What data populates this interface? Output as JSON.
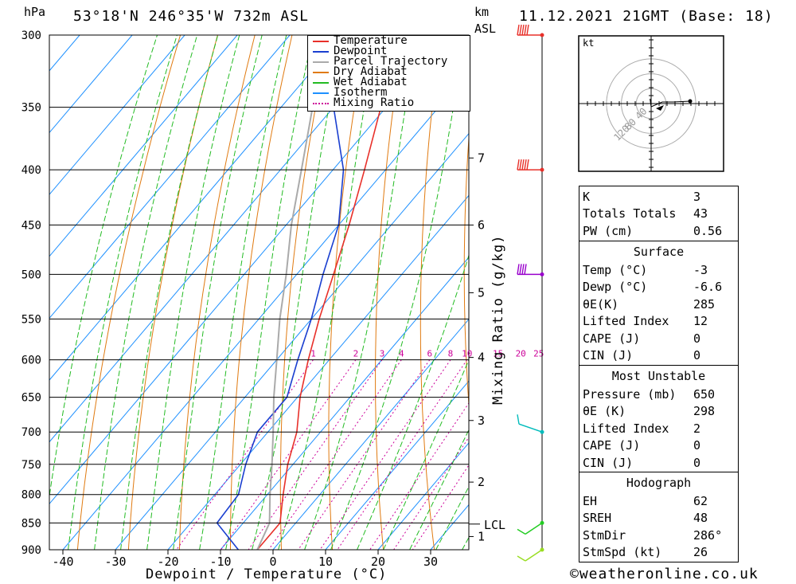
{
  "header": {
    "hpa_label": "hPa",
    "location": "53°18'N  246°35'W  732m  ASL",
    "km_label": "km",
    "asl_label": "ASL",
    "datetime": "11.12.2021  21GMT  (Base: 18)"
  },
  "legend": [
    {
      "name": "Temperature",
      "color": "#e8302a"
    },
    {
      "name": "Dewpoint",
      "color": "#1a3fd0"
    },
    {
      "name": "Parcel Trajectory",
      "color": "#aaaaaa"
    },
    {
      "name": "Dry Adiabat",
      "color": "#e07a10"
    },
    {
      "name": "Wet Adiabat",
      "color": "#22bb22"
    },
    {
      "name": "Isotherm",
      "color": "#1e90ff"
    },
    {
      "name": "Mixing Ratio",
      "color": "#cc0099"
    }
  ],
  "chart_data": {
    "type": "line",
    "title": "Skew-T log-P diagram",
    "xlabel": "Dewpoint / Temperature (°C)",
    "ylabel": "hPa",
    "y_right_label": "Mixing Ratio (g/kg)",
    "xlim": [
      -45,
      37
    ],
    "ylim": [
      900,
      300
    ],
    "pressure_levels": [
      300,
      350,
      400,
      450,
      500,
      550,
      600,
      650,
      700,
      750,
      800,
      850,
      900
    ],
    "x_ticks": [
      -40,
      -30,
      -20,
      -10,
      0,
      10,
      20,
      30
    ],
    "km_ticks": [
      {
        "label": "1",
        "p": 875
      },
      {
        "label": "2",
        "p": 779
      },
      {
        "label": "3",
        "p": 683
      },
      {
        "label": "4",
        "p": 597
      },
      {
        "label": "5",
        "p": 520
      },
      {
        "label": "6",
        "p": 450
      },
      {
        "label": "7",
        "p": 390
      }
    ],
    "lcl": {
      "label": "LCL",
      "p": 852
    },
    "mixing_ratio_labels": [
      "1",
      "2",
      "3",
      "4",
      "6",
      "8",
      "10",
      "15",
      "20",
      "25"
    ],
    "mixing_ratio_values": [
      1,
      2,
      3,
      4,
      6,
      8,
      10,
      15,
      20,
      25
    ],
    "series": [
      {
        "name": "Temperature",
        "points": [
          [
            900,
            -3
          ],
          [
            850,
            -3
          ],
          [
            800,
            -7
          ],
          [
            750,
            -11
          ],
          [
            700,
            -14.5
          ],
          [
            650,
            -19.5
          ],
          [
            600,
            -24
          ],
          [
            550,
            -28.5
          ],
          [
            500,
            -33
          ],
          [
            450,
            -38
          ],
          [
            400,
            -44
          ],
          [
            350,
            -51
          ],
          [
            300,
            -58
          ]
        ]
      },
      {
        "name": "Dewpoint",
        "points": [
          [
            900,
            -6.6
          ],
          [
            850,
            -15
          ],
          [
            800,
            -15.5
          ],
          [
            750,
            -19
          ],
          [
            700,
            -22
          ],
          [
            650,
            -22
          ],
          [
            600,
            -26
          ],
          [
            550,
            -30
          ],
          [
            500,
            -35
          ],
          [
            450,
            -40
          ],
          [
            400,
            -48
          ],
          [
            350,
            -60
          ],
          [
            300,
            -67
          ]
        ]
      },
      {
        "name": "Parcel Trajectory",
        "points": [
          [
            900,
            -3
          ],
          [
            850,
            -5
          ],
          [
            800,
            -9.5
          ],
          [
            750,
            -14
          ],
          [
            700,
            -19
          ],
          [
            650,
            -24.5
          ],
          [
            600,
            -30
          ],
          [
            550,
            -36
          ],
          [
            500,
            -42
          ],
          [
            450,
            -49
          ],
          [
            400,
            -56
          ],
          [
            350,
            -64
          ],
          [
            300,
            -73
          ]
        ]
      }
    ],
    "wind_barbs": [
      {
        "p": 300,
        "color": "#e8302a",
        "knots": 50
      },
      {
        "p": 400,
        "color": "#e8302a",
        "knots": 50
      },
      {
        "p": 500,
        "color": "#9900cc",
        "knots": 40
      },
      {
        "p": 700,
        "color": "#00bbbb",
        "knots": 20
      },
      {
        "p": 850,
        "color": "#22cc22",
        "knots": 10
      },
      {
        "p": 900,
        "color": "#99dd22",
        "knots": 10
      }
    ]
  },
  "hodograph": {
    "unit": "kt",
    "rings": [
      "40",
      "80",
      "120"
    ],
    "points_kt": [
      [
        0,
        0
      ],
      [
        -1,
        -5
      ],
      [
        0,
        -8
      ],
      [
        10,
        -5
      ],
      [
        20,
        -3
      ],
      [
        35,
        -2
      ]
    ]
  },
  "indices": {
    "k_label": "K",
    "k_value": "3",
    "tt_label": "Totals Totals",
    "tt_value": "43",
    "pw_label": "PW (cm)",
    "pw_value": "0.56"
  },
  "surface": {
    "title": "Surface",
    "rows": [
      {
        "label": "Temp (°C)",
        "value": "-3"
      },
      {
        "label": "Dewp (°C)",
        "value": "-6.6"
      },
      {
        "label": "θE(K)",
        "value": "285"
      },
      {
        "label": "Lifted Index",
        "value": "12"
      },
      {
        "label": "CAPE (J)",
        "value": "0"
      },
      {
        "label": "CIN (J)",
        "value": "0"
      }
    ]
  },
  "most_unstable": {
    "title": "Most Unstable",
    "rows": [
      {
        "label": "Pressure (mb)",
        "value": "650"
      },
      {
        "label": "θE (K)",
        "value": "298"
      },
      {
        "label": "Lifted Index",
        "value": "2"
      },
      {
        "label": "CAPE (J)",
        "value": "0"
      },
      {
        "label": "CIN (J)",
        "value": "0"
      }
    ]
  },
  "hodograph_stats": {
    "title": "Hodograph",
    "rows": [
      {
        "label": "EH",
        "value": "62"
      },
      {
        "label": "SREH",
        "value": "48"
      },
      {
        "label": "StmDir",
        "value": "286°"
      },
      {
        "label": "StmSpd (kt)",
        "value": "26"
      }
    ]
  },
  "footer": {
    "copyright": "©weatheronline.co.uk"
  }
}
